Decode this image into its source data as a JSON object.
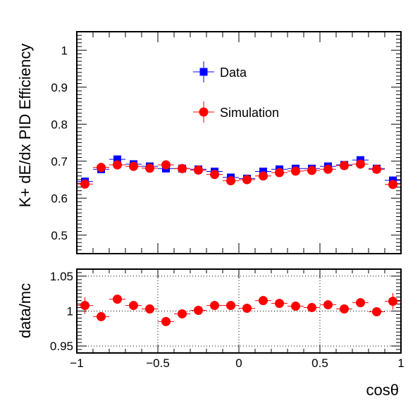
{
  "chart_data": [
    {
      "type": "scatter",
      "ylabel": "K+ dE/dx PID Efficiency",
      "xlim": [
        -1,
        1
      ],
      "ylim": [
        0.45,
        1.05
      ],
      "yticks": [
        "0.5",
        "0.6",
        "0.7",
        "0.8",
        "0.9",
        "1"
      ],
      "x": [
        -0.95,
        -0.85,
        -0.75,
        -0.65,
        -0.55,
        -0.45,
        -0.35,
        -0.25,
        -0.15,
        -0.05,
        0.05,
        0.15,
        0.25,
        0.35,
        0.45,
        0.55,
        0.65,
        0.75,
        0.85,
        0.95
      ],
      "series": [
        {
          "name": "Data",
          "color": "#0000ff",
          "marker": "square",
          "values": [
            0.645,
            0.678,
            0.705,
            0.692,
            0.686,
            0.68,
            0.68,
            0.678,
            0.672,
            0.656,
            0.653,
            0.672,
            0.678,
            0.68,
            0.68,
            0.686,
            0.69,
            0.703,
            0.68,
            0.648
          ]
        },
        {
          "name": "Simulation",
          "color": "#ff0000",
          "marker": "circle",
          "values": [
            0.638,
            0.683,
            0.69,
            0.686,
            0.681,
            0.69,
            0.68,
            0.676,
            0.664,
            0.647,
            0.65,
            0.66,
            0.669,
            0.673,
            0.675,
            0.678,
            0.688,
            0.692,
            0.678,
            0.637
          ]
        }
      ],
      "legend": "upper-center"
    },
    {
      "type": "scatter",
      "ylabel": "data/mc",
      "xlabel": "cosθ",
      "xlim": [
        -1,
        1
      ],
      "ylim": [
        0.94,
        1.06
      ],
      "yticks": [
        "0.95",
        "1",
        "1.05"
      ],
      "xticks": [
        "−1",
        "−0.5",
        "0",
        "0.5",
        "1"
      ],
      "grid": true,
      "x": [
        -0.95,
        -0.85,
        -0.75,
        -0.65,
        -0.55,
        -0.45,
        -0.35,
        -0.25,
        -0.15,
        -0.05,
        0.05,
        0.15,
        0.25,
        0.35,
        0.45,
        0.55,
        0.65,
        0.75,
        0.85,
        0.95
      ],
      "series": [
        {
          "color": "#ff0000",
          "marker": "circle",
          "values": [
            1.008,
            0.992,
            1.017,
            1.008,
            1.003,
            0.985,
            0.996,
            1.001,
            1.008,
            1.008,
            1.004,
            1.015,
            1.011,
            1.007,
            1.005,
            1.009,
            1.003,
            1.012,
            0.999,
            1.014
          ],
          "yerr": [
            0.012,
            0.006,
            0.006,
            0.005,
            0.005,
            0.005,
            0.005,
            0.004,
            0.004,
            0.004,
            0.004,
            0.004,
            0.004,
            0.004,
            0.005,
            0.005,
            0.005,
            0.006,
            0.006,
            0.012
          ]
        }
      ]
    }
  ]
}
